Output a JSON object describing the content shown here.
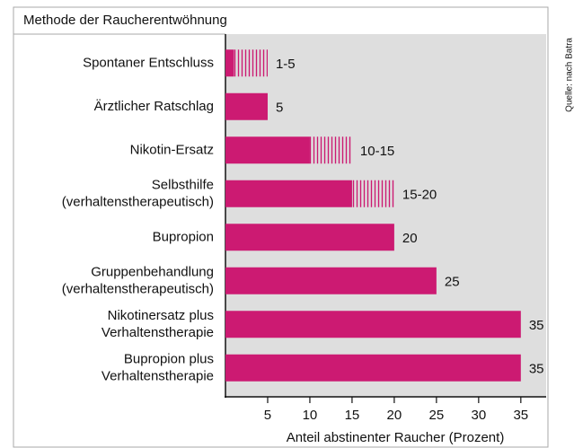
{
  "chart_data": {
    "type": "bar",
    "orientation": "horizontal",
    "title": "Methode der Raucherentwöhnung",
    "categories": [
      [
        "Spontaner Entschluss"
      ],
      [
        "Ärztlicher Ratschlag"
      ],
      [
        "Nikotin-Ersatz"
      ],
      [
        "Selbsthilfe",
        "(verhaltenstherapeutisch)"
      ],
      [
        "Bupropion"
      ],
      [
        "Gruppenbehandlung",
        "(verhaltenstherapeutisch)"
      ],
      [
        "Nikotinersatz plus",
        "Verhaltenstherapie"
      ],
      [
        "Bupropion plus",
        "Verhaltenstherapie"
      ]
    ],
    "values": [
      1,
      5,
      10,
      15,
      20,
      25,
      35,
      35
    ],
    "high": [
      5,
      null,
      15,
      20,
      null,
      null,
      null,
      null
    ],
    "value_labels": [
      "1-5",
      "5",
      "10-15",
      "15-20",
      "20",
      "25",
      "35",
      "35"
    ],
    "color": "#cc1a72",
    "xlim": [
      0,
      38
    ],
    "xticks": [
      5,
      10,
      15,
      20,
      25,
      30,
      35
    ],
    "xlabel": "Anteil abstinenter Raucher (Prozent)",
    "source": "Quelle: nach Batra"
  }
}
